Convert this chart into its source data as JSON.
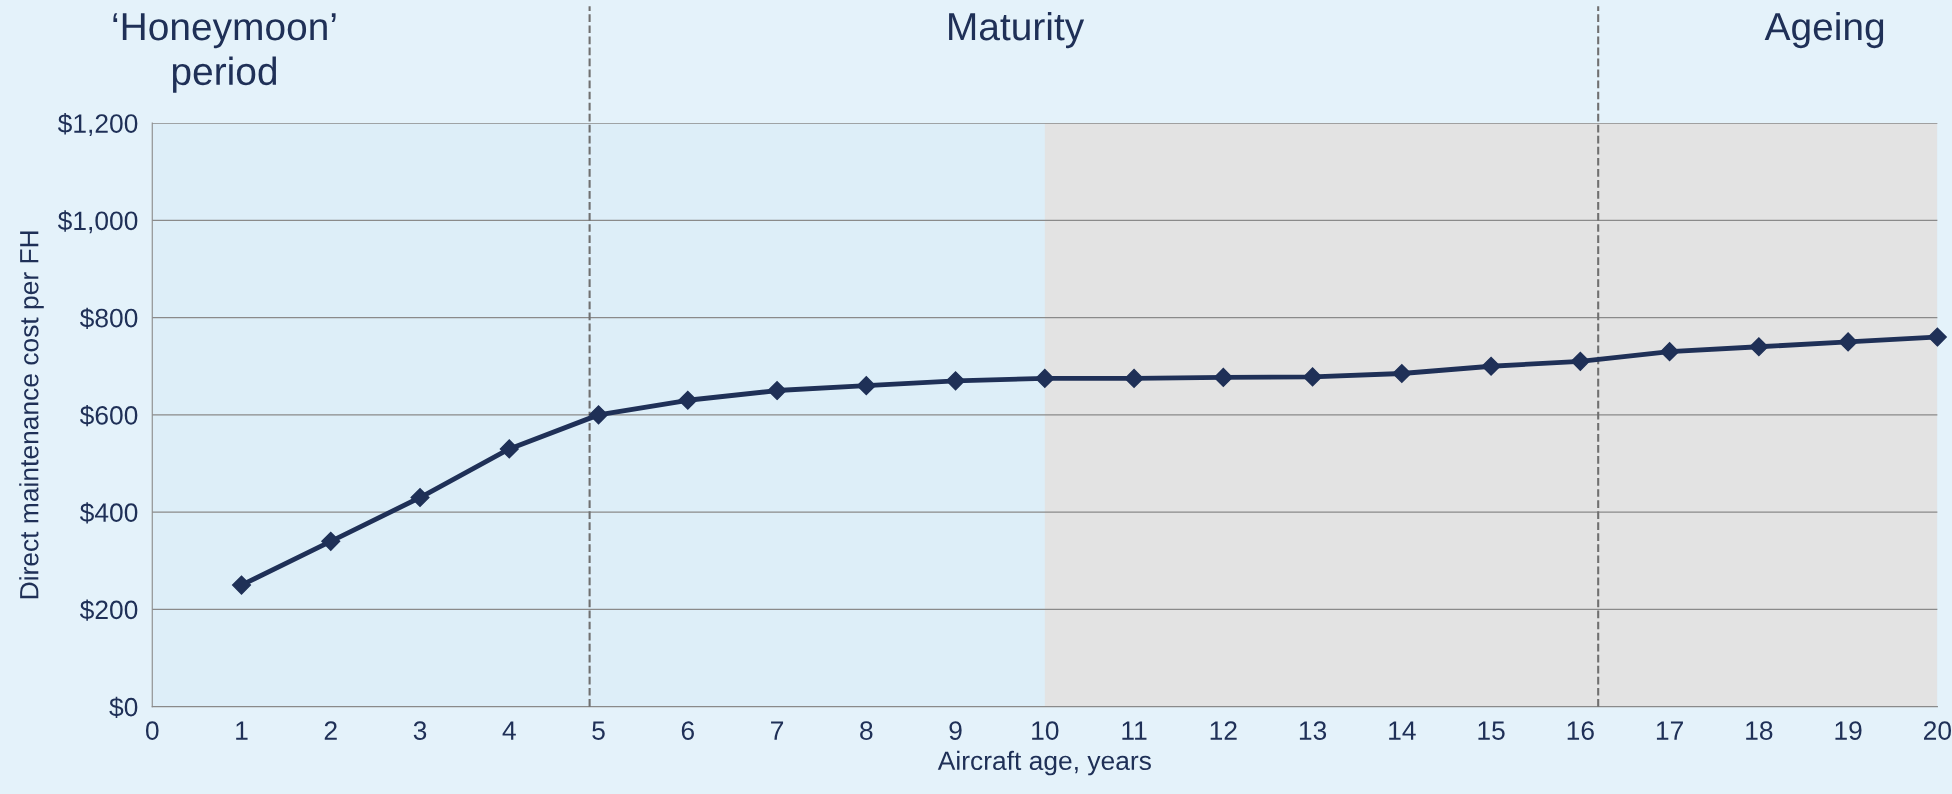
{
  "chart_data": {
    "type": "line",
    "xlabel": "Aircraft age, years",
    "ylabel": "Direct maintenance cost per FH",
    "x": [
      1,
      2,
      3,
      4,
      5,
      6,
      7,
      8,
      9,
      10,
      11,
      12,
      13,
      14,
      15,
      16,
      17,
      18,
      19,
      20
    ],
    "series": [
      {
        "color": "#1f3057",
        "values": [
          250,
          340,
          430,
          530,
          600,
          630,
          650,
          660,
          670,
          675,
          675,
          677,
          678,
          685,
          700,
          710,
          730,
          740,
          750,
          760
        ]
      }
    ],
    "marker": "diamond",
    "line_style": "solid",
    "grid": "y",
    "xlim": [
      0,
      20
    ],
    "xticks": [
      0,
      1,
      2,
      3,
      4,
      5,
      6,
      7,
      8,
      9,
      10,
      11,
      12,
      13,
      14,
      15,
      16,
      17,
      18,
      19,
      20
    ],
    "ylim": [
      0,
      1200
    ],
    "yticks": [
      {
        "value": 0,
        "label": "$0"
      },
      {
        "value": 200,
        "label": "$200"
      },
      {
        "value": 400,
        "label": "$400"
      },
      {
        "value": 600,
        "label": "$600"
      },
      {
        "value": 800,
        "label": "$800"
      },
      {
        "value": 1000,
        "label": "$1,000"
      },
      {
        "value": 1200,
        "label": "$1,200"
      }
    ],
    "ref_lines": [
      {
        "axis": "x",
        "value": 4.9,
        "color": "#707070",
        "line_style": "dashed"
      },
      {
        "axis": "x",
        "value": 16.2,
        "color": "#707070",
        "line_style": "dashed"
      }
    ],
    "bands": [
      {
        "axis": "x",
        "from": 10,
        "to": 20,
        "color": "#e3e3e3"
      }
    ],
    "annotations": [
      "‘Honeymoon’\nperiod",
      "Maturity",
      "Ageing"
    ]
  }
}
